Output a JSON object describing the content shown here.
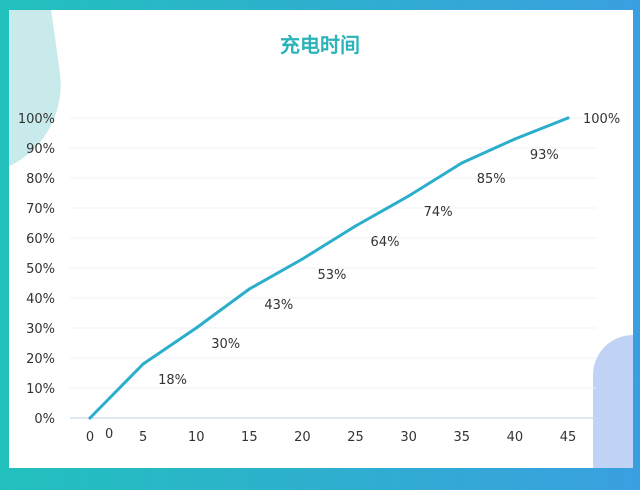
{
  "chart_data": {
    "type": "line",
    "title": "充电时间",
    "x": [
      0,
      5,
      10,
      15,
      20,
      25,
      30,
      35,
      40,
      45
    ],
    "series": [
      {
        "values": [
          0,
          18,
          30,
          43,
          53,
          64,
          74,
          85,
          93,
          100
        ]
      }
    ],
    "data_labels": [
      "0",
      "18%",
      "30%",
      "43%",
      "53%",
      "64%",
      "74%",
      "85%",
      "93%",
      "100%"
    ],
    "x_tick_labels": [
      "0",
      "5",
      "10",
      "15",
      "20",
      "25",
      "30",
      "35",
      "40",
      "45"
    ],
    "y_tick_labels": [
      "0%",
      "10%",
      "20%",
      "30%",
      "40%",
      "50%",
      "60%",
      "70%",
      "80%",
      "90%",
      "100%"
    ],
    "xlim": [
      0,
      45
    ],
    "ylim": [
      0,
      100
    ],
    "xlabel": "",
    "ylabel": "",
    "grid": true,
    "legend": "none",
    "colors": {
      "line": "#2aaecb",
      "title": "#2ab3b8",
      "grid": "#eef1f8",
      "axis": "#c9d6ea",
      "text": "#333333"
    }
  }
}
